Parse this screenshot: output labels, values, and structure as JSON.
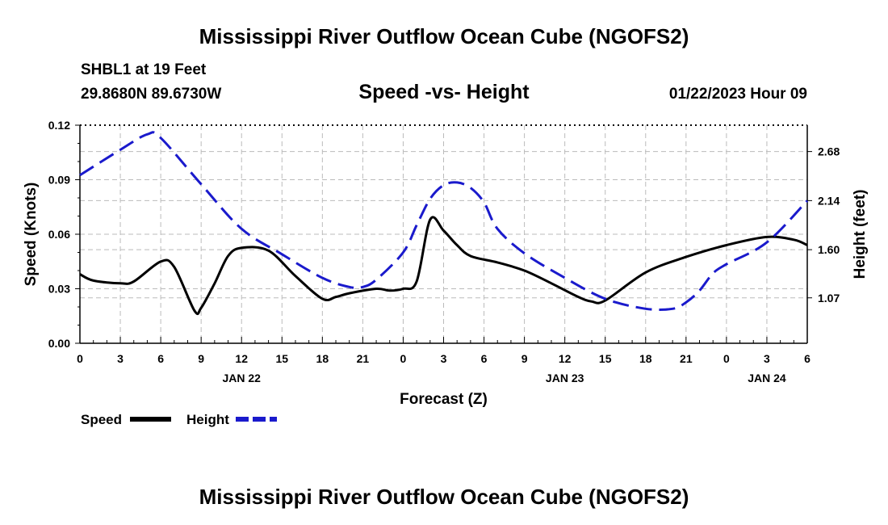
{
  "page": {
    "title": "Mississippi River Outflow Ocean Cube (NGOFS2)",
    "title_repeat": "Mississippi River Outflow Ocean Cube (NGOFS2)",
    "station": "SHBL1 at 19 Feet",
    "coords": "29.8680N  89.6730W",
    "subtitle": "Speed -vs- Height",
    "datetime": "01/22/2023 Hour 09"
  },
  "colors": {
    "speed": "#000000",
    "height": "#1a1acc",
    "grid": "#bbbbbb"
  },
  "chart_data": {
    "type": "line",
    "title": "Speed -vs- Height",
    "xlabel": "Forecast (Z)",
    "ylabel": "Speed (Knots)",
    "y2label": "Height (feet)",
    "xlim": [
      0,
      54
    ],
    "ylim": [
      0,
      0.12
    ],
    "y2lim": [
      0.57,
      2.97
    ],
    "x_ticks": [
      0,
      3,
      6,
      9,
      12,
      15,
      18,
      21,
      24,
      27,
      30,
      33,
      36,
      39,
      42,
      45,
      48,
      51,
      54
    ],
    "x_tick_labels": [
      "0",
      "3",
      "6",
      "9",
      "12",
      "15",
      "18",
      "21",
      "0",
      "3",
      "6",
      "9",
      "12",
      "15",
      "18",
      "21",
      "0",
      "3",
      "6"
    ],
    "date_labels": [
      {
        "x": 12,
        "label": "JAN 22"
      },
      {
        "x": 36,
        "label": "JAN 23"
      },
      {
        "x": 51,
        "label": "JAN 24"
      }
    ],
    "y_ticks": [
      0,
      0.03,
      0.06,
      0.09,
      0.12
    ],
    "y_tick_labels": [
      "0.00",
      "0.03",
      "0.06",
      "0.09",
      "0.12"
    ],
    "y2_ticks": [
      1.07,
      1.6,
      2.14,
      2.68
    ],
    "y2_tick_labels": [
      "1.07",
      "1.60",
      "2.14",
      "2.68"
    ],
    "grid": true,
    "legend": {
      "position": "bottom-left",
      "entries": [
        "Speed",
        "Height"
      ]
    },
    "series": [
      {
        "name": "Speed",
        "axis": "left",
        "style": "solid",
        "x": [
          0,
          1,
          3,
          4,
          6,
          7,
          8.5,
          9,
          10,
          11,
          12,
          14,
          16,
          18,
          19,
          20,
          22,
          23,
          24,
          25,
          26,
          27,
          28,
          29,
          31,
          33,
          35,
          37,
          38,
          39,
          42,
          45,
          48,
          51,
          53,
          54
        ],
        "values": [
          0.038,
          0.0345,
          0.033,
          0.034,
          0.045,
          0.042,
          0.018,
          0.0195,
          0.033,
          0.048,
          0.0525,
          0.051,
          0.037,
          0.0245,
          0.0255,
          0.0275,
          0.03,
          0.029,
          0.03,
          0.034,
          0.068,
          0.062,
          0.054,
          0.048,
          0.0445,
          0.04,
          0.033,
          0.0255,
          0.023,
          0.0235,
          0.039,
          0.0475,
          0.054,
          0.0585,
          0.057,
          0.054
        ]
      },
      {
        "name": "Height",
        "axis": "right",
        "style": "dashed",
        "x": [
          0,
          3,
          5,
          6,
          9,
          12,
          15,
          18,
          20,
          21,
          22,
          24,
          25,
          26,
          27,
          28,
          29,
          30,
          31,
          33,
          36,
          39,
          42,
          44,
          45,
          46,
          47,
          48,
          51,
          54
        ],
        "values": [
          2.42,
          2.7,
          2.87,
          2.83,
          2.32,
          1.83,
          1.55,
          1.29,
          1.19,
          1.19,
          1.27,
          1.57,
          1.87,
          2.16,
          2.31,
          2.34,
          2.28,
          2.12,
          1.83,
          1.56,
          1.29,
          1.06,
          0.95,
          0.95,
          1.02,
          1.15,
          1.34,
          1.44,
          1.68,
          2.14
        ]
      }
    ]
  }
}
